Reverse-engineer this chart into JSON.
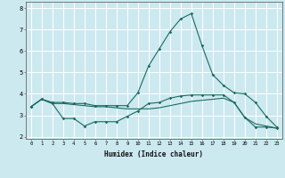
{
  "title": "",
  "xlabel": "Humidex (Indice chaleur)",
  "ylabel": "",
  "bg_color": "#cce9f0",
  "line_color": "#1a6b5e",
  "grid_color": "#ffffff",
  "x_ticks": [
    0,
    1,
    2,
    3,
    4,
    5,
    6,
    7,
    8,
    9,
    10,
    11,
    12,
    13,
    14,
    15,
    16,
    17,
    18,
    19,
    20,
    21,
    22,
    23
  ],
  "y_ticks": [
    2,
    3,
    4,
    5,
    6,
    7,
    8
  ],
  "ylim": [
    1.9,
    8.3
  ],
  "xlim": [
    -0.5,
    23.5
  ],
  "series1": {
    "x": [
      0,
      1,
      2,
      3,
      4,
      5,
      6,
      7,
      8,
      9,
      10,
      11,
      12,
      13,
      14,
      15,
      16,
      17,
      18,
      19,
      20,
      21,
      22,
      23
    ],
    "y": [
      3.4,
      3.75,
      3.6,
      3.6,
      3.55,
      3.55,
      3.45,
      3.45,
      3.45,
      3.45,
      4.05,
      5.3,
      6.1,
      6.9,
      7.5,
      7.75,
      6.25,
      4.9,
      4.4,
      4.05,
      4.0,
      3.6,
      2.95,
      2.45
    ]
  },
  "series2": {
    "x": [
      0,
      1,
      2,
      3,
      4,
      5,
      6,
      7,
      8,
      9,
      10,
      11,
      12,
      13,
      14,
      15,
      16,
      17,
      18,
      19,
      20,
      21,
      22,
      23
    ],
    "y": [
      3.4,
      3.75,
      3.55,
      2.85,
      2.85,
      2.5,
      2.7,
      2.7,
      2.7,
      2.95,
      3.2,
      3.55,
      3.6,
      3.8,
      3.9,
      3.95,
      3.95,
      3.95,
      3.95,
      3.6,
      2.9,
      2.45,
      2.45,
      2.4
    ]
  },
  "series3": {
    "x": [
      0,
      1,
      2,
      3,
      4,
      5,
      6,
      7,
      8,
      9,
      10,
      11,
      12,
      13,
      14,
      15,
      16,
      17,
      18,
      19,
      20,
      21,
      22,
      23
    ],
    "y": [
      3.4,
      3.75,
      3.55,
      3.55,
      3.5,
      3.45,
      3.4,
      3.4,
      3.35,
      3.3,
      3.3,
      3.3,
      3.35,
      3.45,
      3.55,
      3.65,
      3.7,
      3.75,
      3.8,
      3.6,
      2.9,
      2.6,
      2.5,
      2.4
    ]
  }
}
